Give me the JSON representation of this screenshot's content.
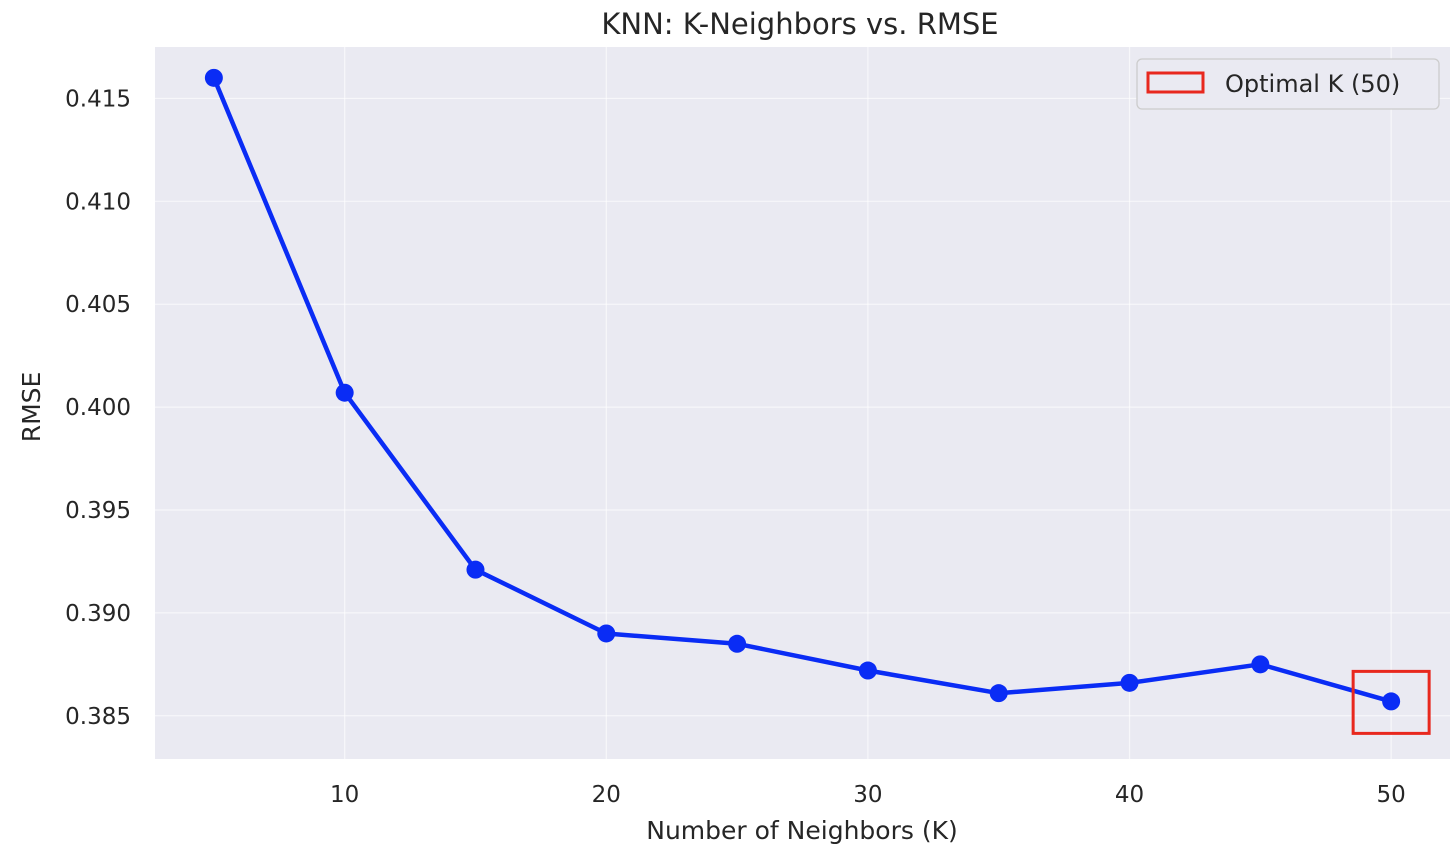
{
  "chart_data": {
    "type": "line",
    "title": "KNN: K-Neighbors vs. RMSE",
    "xlabel": "Number of Neighbors (K)",
    "ylabel": "RMSE",
    "x": [
      5,
      10,
      15,
      20,
      25,
      30,
      35,
      40,
      45,
      50
    ],
    "series": [
      {
        "values": [
          0.416,
          0.4007,
          0.3921,
          0.389,
          0.3885,
          0.3872,
          0.3861,
          0.3866,
          0.3875,
          0.3857
        ],
        "color": "#0a2cf5"
      }
    ],
    "xlim": [
      2.75,
      52.25
    ],
    "ylim": [
      0.3829,
      0.4175
    ],
    "xticks": [
      10,
      20,
      30,
      40,
      50
    ],
    "xtick_labels": [
      "10",
      "20",
      "30",
      "40",
      "50"
    ],
    "yticks": [
      0.385,
      0.39,
      0.395,
      0.4,
      0.405,
      0.41,
      0.415
    ],
    "ytick_labels": [
      "0.385",
      "0.390",
      "0.395",
      "0.400",
      "0.405",
      "0.410",
      "0.415"
    ],
    "grid": true,
    "background_color": "#eaeaf2",
    "highlight": {
      "x": 50,
      "y": 0.3857,
      "color": "#e8281e",
      "label": "Optimal K (50)"
    },
    "legend": {
      "position": "top-right",
      "entries": [
        "Optimal K (50)"
      ]
    }
  }
}
